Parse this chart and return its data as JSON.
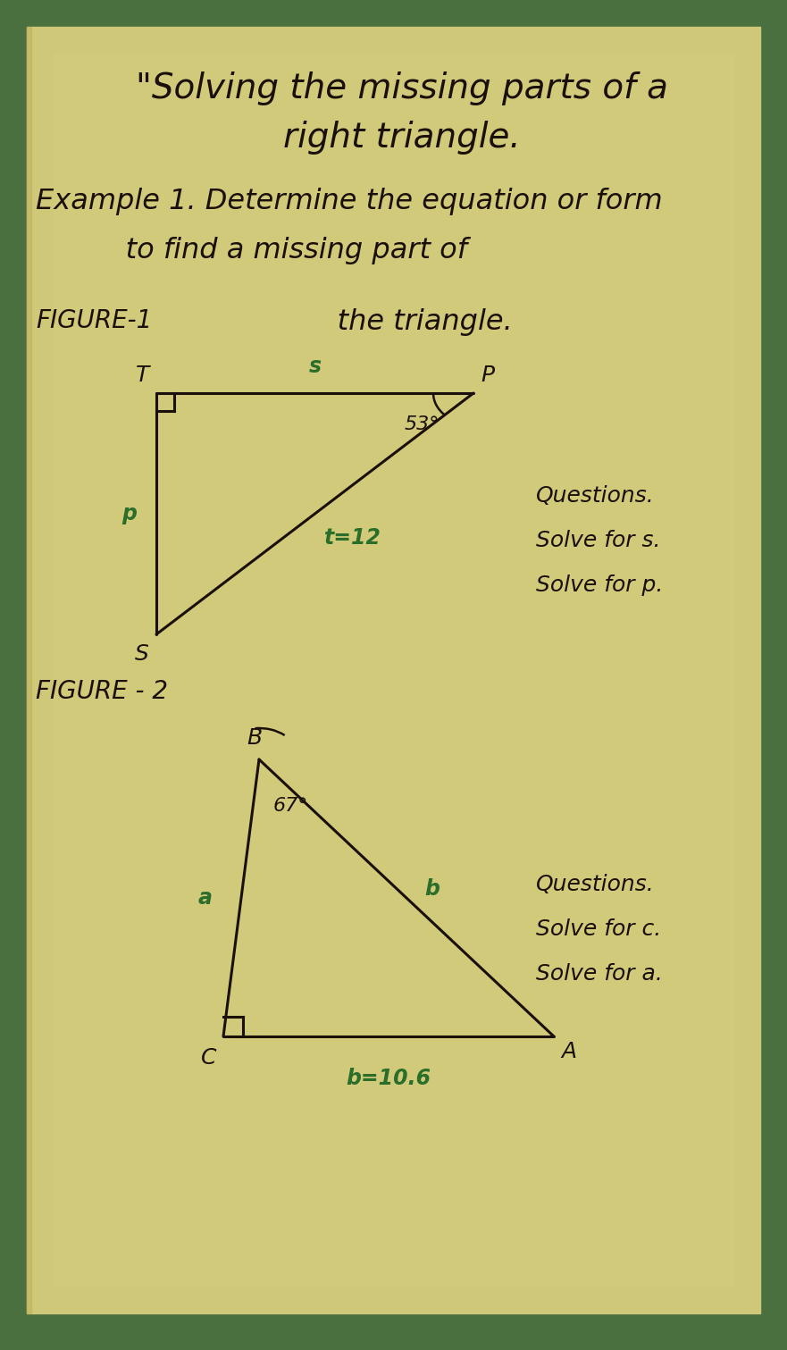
{
  "bg_green": "#4a7040",
  "bg_paper": "#cfc87a",
  "bg_paper_lower": "#c8bb6a",
  "title_line1": "\"Solving the missing parts of a",
  "title_line2": "right triangle.",
  "example_line1": "Example 1. Determine the equation or form",
  "example_line2": "     to find a missing part of",
  "figure1_label": "FIGURE-1",
  "figure1_subtitle": "     the triangle.",
  "figure2_label": "FIGURE - 2",
  "fig1_angle_label": "53°",
  "fig1_side_t_label": "t=12",
  "fig1_side_s_label": "s",
  "fig1_side_p_label": "p",
  "fig1_q1": "Questions.",
  "fig1_q2": "Solve for s.",
  "fig1_q3": "Solve for p.",
  "fig2_angle_label": "67°",
  "fig2_side_b_label": "b",
  "fig2_side_a_label": "a",
  "fig2_bottom_label": "b=10.6",
  "fig2_q1": "Questions.",
  "fig2_q2": "Solve for c.",
  "fig2_q3": "Solve for a.",
  "green_ink": "#2a6e2a",
  "black_ink": "#1a1008",
  "shadow_color": "#b8a850"
}
